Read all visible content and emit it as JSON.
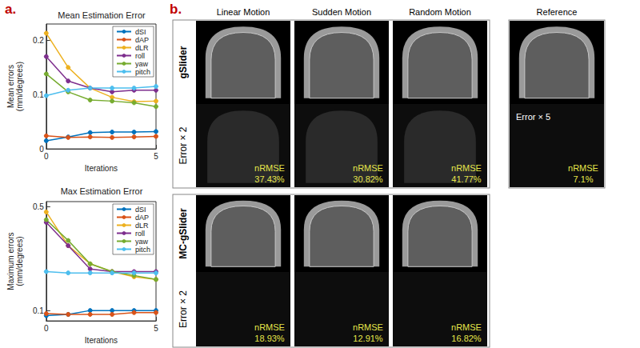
{
  "panel_labels": [
    "a.",
    "b."
  ],
  "chart_data": [
    {
      "type": "line",
      "title": "Mean Estimation Error",
      "x_label": "Iterations",
      "y_label": "Mean errors (mm/degrees)",
      "x": [
        0,
        1,
        2,
        3,
        4,
        5
      ],
      "xlim": [
        0,
        5
      ],
      "xticks": [
        0,
        5
      ],
      "ylim": [
        0,
        0.23
      ],
      "yticks": [
        0,
        0.1,
        0.2
      ],
      "grid": false,
      "legend": "upper right",
      "marker": "circle",
      "series": [
        {
          "name": "dSI",
          "color": "#0072bd",
          "values": [
            0.015,
            0.022,
            0.03,
            0.031,
            0.031,
            0.032
          ]
        },
        {
          "name": "dAP",
          "color": "#d95319",
          "values": [
            0.024,
            0.021,
            0.022,
            0.021,
            0.022,
            0.023
          ]
        },
        {
          "name": "dLR",
          "color": "#edb120",
          "values": [
            0.213,
            0.15,
            0.112,
            0.095,
            0.087,
            0.088
          ]
        },
        {
          "name": "roll",
          "color": "#7e2f8e",
          "values": [
            0.17,
            0.125,
            0.112,
            0.105,
            0.108,
            0.108
          ]
        },
        {
          "name": "yaw",
          "color": "#77ac30",
          "values": [
            0.138,
            0.105,
            0.09,
            0.088,
            0.085,
            0.078
          ]
        },
        {
          "name": "pitch",
          "color": "#4dbeee",
          "values": [
            0.098,
            0.108,
            0.112,
            0.112,
            0.112,
            0.115
          ]
        }
      ]
    },
    {
      "type": "line",
      "title": "Max Estimation Error",
      "x_label": "Iterations",
      "y_label": "Maximum errors (mm/degrees)",
      "x": [
        0,
        1,
        2,
        3,
        4,
        5
      ],
      "xlim": [
        0,
        5
      ],
      "xticks": [
        0,
        5
      ],
      "ylim": [
        0.06,
        0.52
      ],
      "yticks": [
        0.1,
        0.5
      ],
      "grid": false,
      "legend": "upper right",
      "marker": "circle",
      "series": [
        {
          "name": "dSI",
          "color": "#0072bd",
          "values": [
            0.08,
            0.085,
            0.1,
            0.1,
            0.1,
            0.1
          ]
        },
        {
          "name": "dAP",
          "color": "#d95319",
          "values": [
            0.088,
            0.085,
            0.085,
            0.085,
            0.092,
            0.092
          ]
        },
        {
          "name": "dLR",
          "color": "#edb120",
          "values": [
            0.48,
            0.35,
            0.28,
            0.25,
            0.23,
            0.22
          ]
        },
        {
          "name": "roll",
          "color": "#7e2f8e",
          "values": [
            0.44,
            0.35,
            0.26,
            0.25,
            0.25,
            0.25
          ]
        },
        {
          "name": "yaw",
          "color": "#77ac30",
          "values": [
            0.45,
            0.37,
            0.28,
            0.25,
            0.235,
            0.22
          ]
        },
        {
          "name": "pitch",
          "color": "#4dbeee",
          "values": [
            0.25,
            0.245,
            0.245,
            0.245,
            0.245,
            0.245
          ]
        }
      ]
    }
  ],
  "image_panel": {
    "columns": [
      "Linear Motion",
      "Sudden Motion",
      "Random Motion"
    ],
    "rows": [
      {
        "label": "gSlider",
        "error_label": "Error × 2",
        "metric": "nRMSE",
        "values": [
          "37.43%",
          "30.82%",
          "41.77%"
        ]
      },
      {
        "label": "MC-gSlider",
        "error_label": "Error × 2",
        "metric": "nRMSE",
        "values": [
          "18.93%",
          "12.91%",
          "16.82%"
        ]
      }
    ],
    "reference": {
      "title": "Reference",
      "error_label": "Error × 5",
      "metric": "nRMSE",
      "value": "7.1%"
    }
  }
}
